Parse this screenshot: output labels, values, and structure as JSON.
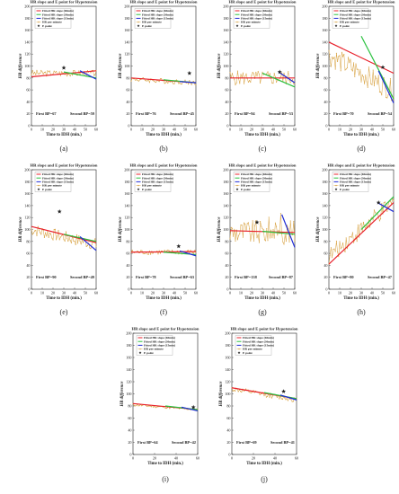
{
  "legend": {
    "entries": [
      "Fitted HR slope (60min)",
      "Fitted HR slope (30min)",
      "Fitted HR slope (15min)",
      "HR per minute",
      "E point"
    ]
  },
  "colors": {
    "slope60": "#e8212b",
    "slope30": "#2ac13f",
    "slope15": "#1f2bd6",
    "hr": "#d9a548",
    "epoint": "#222222"
  },
  "chart_data": [
    {
      "type": "line",
      "letter": "(a)",
      "title": "HR slope and E point for Hypotension",
      "xlabel": "Time to IDH (min.)",
      "ylabel": "HR difference",
      "xlim": [
        0,
        60
      ],
      "ylim": [
        0,
        200
      ],
      "xticks": [
        0,
        10,
        20,
        30,
        40,
        50,
        60
      ],
      "yticks": [
        0,
        20,
        40,
        60,
        80,
        100,
        120,
        140,
        160,
        180,
        200
      ],
      "first_bp": "First BP=67",
      "second_bp": "Second BP=59",
      "hr_base": 88,
      "hr_trend": 0,
      "hr_noise": 5,
      "slope60": [
        82,
        92
      ],
      "slope30": [
        [
          30,
          90
        ],
        [
          60,
          80
        ]
      ],
      "slope15": [
        [
          45,
          92
        ],
        [
          60,
          78
        ]
      ],
      "epoint": [
        30,
        97
      ]
    },
    {
      "type": "line",
      "letter": "(b)",
      "title": "HR slope and E point for Hypotension",
      "xlabel": "Time to IDH (min.)",
      "ylabel": "HR difference",
      "xlim": [
        0,
        60
      ],
      "ylim": [
        0,
        200
      ],
      "xticks": [
        0,
        10,
        20,
        30,
        40,
        50,
        60
      ],
      "yticks": [
        0,
        20,
        40,
        60,
        80,
        100,
        120,
        140,
        160,
        180,
        200
      ],
      "first_bp": "First BP=76",
      "second_bp": "Second BP=45",
      "hr_base": 78,
      "hr_trend": -6,
      "hr_noise": 4,
      "slope60": [
        80,
        72
      ],
      "slope30": [
        [
          30,
          77
        ],
        [
          60,
          72
        ]
      ],
      "slope15": [
        [
          45,
          74
        ],
        [
          60,
          72
        ]
      ],
      "epoint": [
        54,
        88
      ]
    },
    {
      "type": "line",
      "letter": "(c)",
      "title": "HR slope and E point for Hypotension",
      "xlabel": "Time to IDH (min.)",
      "ylabel": "HR difference",
      "xlim": [
        0,
        60
      ],
      "ylim": [
        0,
        200
      ],
      "xticks": [
        0,
        10,
        20,
        30,
        40,
        50,
        60
      ],
      "yticks": [
        0,
        20,
        40,
        60,
        80,
        100,
        120,
        140,
        160,
        180,
        200
      ],
      "first_bp": "First BP=94",
      "second_bp": "Second BP=53",
      "hr_base": 80,
      "hr_trend": 0,
      "hr_noise": 12,
      "slope60": [
        80,
        80
      ],
      "slope30": [
        [
          30,
          88
        ],
        [
          60,
          65
        ]
      ],
      "slope15": [
        [
          45,
          90
        ],
        [
          60,
          72
        ]
      ],
      "epoint": [
        46,
        90
      ]
    },
    {
      "type": "line",
      "letter": "(d)",
      "title": "HR slope and E point for Hypotension",
      "xlabel": "Time to IDH (min.)",
      "ylabel": "HR difference",
      "xlim": [
        0,
        60
      ],
      "ylim": [
        0,
        200
      ],
      "xticks": [
        0,
        10,
        20,
        30,
        40,
        50,
        60
      ],
      "yticks": [
        0,
        20,
        40,
        60,
        80,
        100,
        120,
        140,
        160,
        180,
        200
      ],
      "first_bp": "First BP=70",
      "second_bp": "Second BP=54",
      "hr_base": 118,
      "hr_trend": -60,
      "hr_noise": 18,
      "slope60": [
        140,
        88
      ],
      "slope30": [
        [
          30,
          150
        ],
        [
          60,
          45
        ]
      ],
      "slope15": [
        [
          46,
          92
        ],
        [
          60,
          38
        ]
      ],
      "epoint": [
        50,
        98
      ]
    },
    {
      "type": "line",
      "letter": "(e)",
      "title": "HR slope and E point for Hypotension",
      "xlabel": "Time to IDH (min.)",
      "ylabel": "HR difference",
      "xlim": [
        0,
        60
      ],
      "ylim": [
        0,
        200
      ],
      "xticks": [
        0,
        10,
        20,
        30,
        40,
        50,
        60
      ],
      "yticks": [
        0,
        20,
        40,
        60,
        80,
        100,
        120,
        140,
        160,
        180,
        200
      ],
      "first_bp": "First BP=90",
      "second_bp": "Second BP=49",
      "hr_base": 100,
      "hr_trend": -25,
      "hr_noise": 10,
      "slope60": [
        105,
        78
      ],
      "slope30": [
        [
          30,
          92
        ],
        [
          60,
          80
        ]
      ],
      "slope15": [
        [
          45,
          88
        ],
        [
          60,
          65
        ]
      ],
      "epoint": [
        26,
        130
      ]
    },
    {
      "type": "line",
      "letter": "(f)",
      "title": "HR slope and E point for Hypotension",
      "xlabel": "Time to IDH (min.)",
      "ylabel": "HR difference",
      "xlim": [
        0,
        60
      ],
      "ylim": [
        0,
        200
      ],
      "xticks": [
        0,
        10,
        20,
        30,
        40,
        50,
        60
      ],
      "yticks": [
        0,
        20,
        40,
        60,
        80,
        100,
        120,
        140,
        160,
        180,
        200
      ],
      "first_bp": "First BP=78",
      "second_bp": "Second BP=63",
      "hr_base": 62,
      "hr_trend": 0,
      "hr_noise": 4,
      "slope60": [
        62,
        63
      ],
      "slope30": [
        [
          30,
          62
        ],
        [
          60,
          58
        ]
      ],
      "slope15": [
        [
          45,
          64
        ],
        [
          60,
          56
        ]
      ],
      "epoint": [
        44,
        72
      ]
    },
    {
      "type": "line",
      "letter": "(g)",
      "title": "HR slope and E point for Hypotension",
      "xlabel": "Time to IDH (min.)",
      "ylabel": "HR difference",
      "xlim": [
        0,
        60
      ],
      "ylim": [
        0,
        200
      ],
      "xticks": [
        0,
        10,
        20,
        30,
        40,
        50,
        60
      ],
      "yticks": [
        0,
        20,
        40,
        60,
        80,
        100,
        120,
        140,
        160,
        180,
        200
      ],
      "first_bp": "First BP=138",
      "second_bp": "Second BP=87",
      "hr_base": 95,
      "hr_trend": 0,
      "hr_noise": 20,
      "slope60": [
        98,
        95
      ],
      "slope30": [
        [
          30,
          97
        ],
        [
          60,
          92
        ]
      ],
      "slope15": [
        [
          48,
          125
        ],
        [
          60,
          70
        ]
      ],
      "epoint": [
        25,
        112
      ]
    },
    {
      "type": "line",
      "letter": "(h)",
      "title": "HR slope and E point for Hypotension",
      "xlabel": "Time to IDH (min.)",
      "ylabel": "HR difference",
      "xlim": [
        0,
        60
      ],
      "ylim": [
        0,
        200
      ],
      "xticks": [
        0,
        10,
        20,
        30,
        40,
        50,
        60
      ],
      "yticks": [
        0,
        20,
        40,
        60,
        80,
        100,
        120,
        140,
        160,
        180,
        200
      ],
      "first_bp": "First BP=80",
      "second_bp": "Second BP=47",
      "hr_base": 55,
      "hr_trend": 90,
      "hr_noise": 15,
      "slope60": [
        42,
        145
      ],
      "slope30": [
        [
          30,
          100
        ],
        [
          60,
          155
        ]
      ],
      "slope15": [
        [
          45,
          145
        ],
        [
          60,
          130
        ]
      ],
      "epoint": [
        46,
        145
      ]
    },
    {
      "type": "line",
      "letter": "(i)",
      "title": "HR slope and E point for Hypotension",
      "xlabel": "Time to IDH (min.)",
      "ylabel": "HR difference",
      "xlim": [
        0,
        60
      ],
      "ylim": [
        0,
        200
      ],
      "xticks": [
        0,
        20,
        40,
        60
      ],
      "yticks": [
        0,
        20,
        40,
        60,
        80,
        100,
        120,
        140,
        160,
        180,
        200
      ],
      "first_bp": "First BP=64",
      "second_bp": "Second BP=42",
      "hr_base": 82,
      "hr_trend": -8,
      "hr_noise": 2,
      "slope60": [
        84,
        74
      ],
      "slope30": [
        [
          30,
          80
        ],
        [
          60,
          74
        ]
      ],
      "slope15": [
        [
          45,
          78
        ],
        [
          60,
          72
        ]
      ],
      "epoint": [
        56,
        78
      ]
    },
    {
      "type": "line",
      "letter": "(j)",
      "title": "HR slope and E point for Hypotension",
      "xlabel": "Time to IDH (min.)",
      "ylabel": "HR difference",
      "xlim": [
        0,
        60
      ],
      "ylim": [
        0,
        200
      ],
      "xticks": [
        0,
        20,
        40,
        60
      ],
      "yticks": [
        0,
        20,
        40,
        60,
        80,
        100,
        120,
        140,
        160,
        180,
        200
      ],
      "first_bp": "First BP=69",
      "second_bp": "Second BP=41",
      "hr_base": 108,
      "hr_trend": -18,
      "hr_noise": 4,
      "slope60": [
        110,
        92
      ],
      "slope30": [
        [
          30,
          102
        ],
        [
          60,
          92
        ]
      ],
      "slope15": [
        [
          45,
          98
        ],
        [
          60,
          90
        ]
      ],
      "epoint": [
        48,
        104
      ]
    }
  ]
}
